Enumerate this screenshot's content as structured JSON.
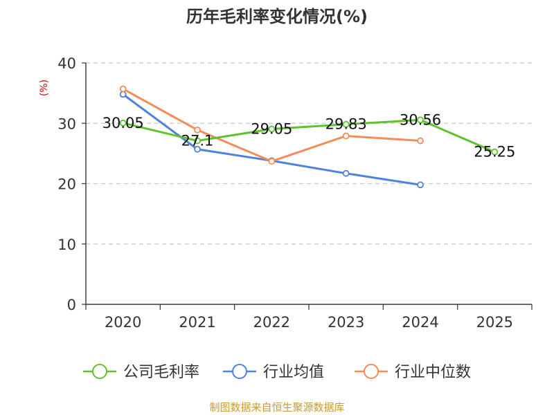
{
  "chart_data": {
    "type": "line",
    "title": "历年毛利率变化情况(%)",
    "ylabel": "(%)",
    "xlabel": "",
    "categories": [
      "2020",
      "2021",
      "2022",
      "2023",
      "2024",
      "2025"
    ],
    "ylim": [
      0,
      40
    ],
    "yticks": [
      0,
      10,
      20,
      30,
      40
    ],
    "grid": true,
    "legend_position": "bottom",
    "series": [
      {
        "name": "公司毛利率",
        "color": "#5dc22c",
        "values": [
          30.05,
          27.1,
          29.05,
          29.83,
          30.56,
          25.25
        ],
        "labels": [
          "30.05",
          "27.1",
          "29.05",
          "29.83",
          "30.56",
          "25.25"
        ]
      },
      {
        "name": "行业均值",
        "color": "#4f82de",
        "values": [
          34.8,
          25.7,
          23.8,
          21.7,
          19.8,
          null
        ]
      },
      {
        "name": "行业中位数",
        "color": "#f48c58",
        "values": [
          35.7,
          28.9,
          23.7,
          27.9,
          27.1,
          null
        ]
      }
    ]
  },
  "source": "制图数据来自恒生聚源数据库"
}
